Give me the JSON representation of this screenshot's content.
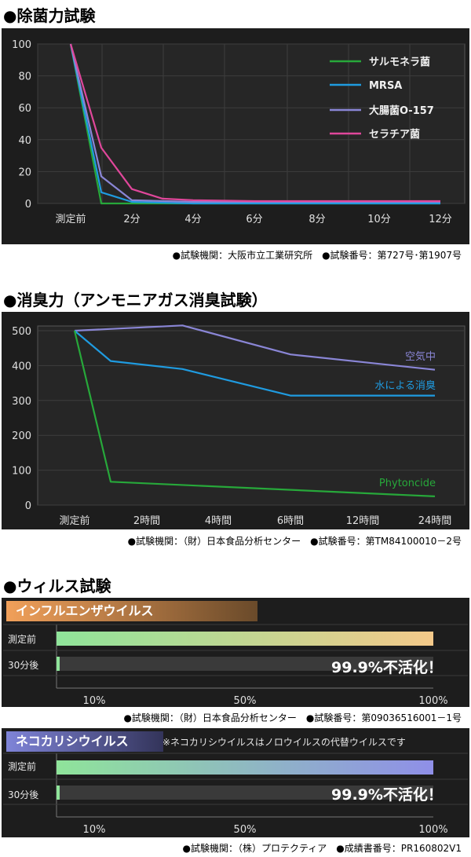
{
  "sections": [
    {
      "title": "●除菌力試験",
      "caption": "●試験機関：大阪市立工業研究所　●試験番号：第727号･第1907号"
    },
    {
      "title": "●消臭力（アンモニアガス消臭試験）",
      "caption": "●試験機関：（財）日本食品分析センター　●試験番号：第TM84100010－2号"
    },
    {
      "title": "●ウィルス試験"
    }
  ],
  "virus": [
    {
      "header": "インフルエンザウイルス",
      "note": "",
      "rows": [
        "測定前",
        "30分後"
      ],
      "result": "99.9%不活化！",
      "caption": "●試験機関：（財）日本食品分析センター　●試験番号：第09036516001－1号",
      "header_color": "#f1a05a",
      "before_fill": 1.0,
      "after_fill": 0.001
    },
    {
      "header": "ネコカリシウイルス",
      "note": "※ネコカリシウイルスはノロウイルスの代替ウイルスです",
      "rows": [
        "測定前",
        "30分後"
      ],
      "result": "99.9%不活化！",
      "caption": "●試験機関：（株）プロテクティア　●成績書番号：PR160802V1",
      "header_color": "#7f84d8",
      "before_fill": 1.0,
      "after_fill": 0.001
    }
  ],
  "chart_data": [
    {
      "type": "line",
      "title": "●除菌力試験",
      "x": [
        "測定前",
        "2分",
        "4分",
        "6分",
        "8分",
        "10分",
        "12分"
      ],
      "ylim": [
        0,
        100
      ],
      "yticks": [
        "100",
        "80",
        "60",
        "40",
        "20",
        "0"
      ],
      "grid": true,
      "legend": "top-right",
      "series": [
        {
          "name": "サルモネラ菌",
          "color": "#27a83a",
          "points": [
            [
              0,
              100
            ],
            [
              0.5,
              0
            ],
            [
              1,
              0
            ],
            [
              2,
              0
            ],
            [
              3,
              0
            ],
            [
              4,
              0
            ],
            [
              5,
              0
            ],
            [
              6,
              0
            ]
          ]
        },
        {
          "name": "MRSA",
          "color": "#1f9be0",
          "points": [
            [
              0,
              100
            ],
            [
              0.5,
              7
            ],
            [
              1,
              1
            ],
            [
              2,
              0
            ],
            [
              3,
              0
            ],
            [
              4,
              0
            ],
            [
              5,
              0
            ],
            [
              6,
              0
            ]
          ]
        },
        {
          "name": "大腸菌O-157",
          "color": "#8a86d6",
          "points": [
            [
              0,
              100
            ],
            [
              0.5,
              17
            ],
            [
              1,
              2
            ],
            [
              2,
              1
            ],
            [
              3,
              1
            ],
            [
              4,
              1
            ],
            [
              5,
              1
            ],
            [
              6,
              1
            ]
          ]
        },
        {
          "name": "セラチア菌",
          "color": "#e0479b",
          "points": [
            [
              0,
              100
            ],
            [
              0.5,
              35
            ],
            [
              1,
              9
            ],
            [
              1.5,
              3
            ],
            [
              2,
              2
            ],
            [
              3,
              1.5
            ],
            [
              4,
              1.5
            ],
            [
              5,
              1.5
            ],
            [
              6,
              1.5
            ]
          ]
        }
      ]
    },
    {
      "type": "line",
      "title": "●消臭力（アンモニアガス消臭試験）",
      "x": [
        "測定前",
        "2時間",
        "4時間",
        "6時間",
        "12時間",
        "24時間"
      ],
      "ylim": [
        0,
        500
      ],
      "yticks": [
        "500",
        "400",
        "300",
        "200",
        "100",
        "0"
      ],
      "grid": true,
      "series": [
        {
          "name": "空気中",
          "color": "#8a86d6",
          "points": [
            [
              0,
              500
            ],
            [
              1.5,
              515
            ],
            [
              3,
              432
            ],
            [
              5,
              388
            ]
          ]
        },
        {
          "name": "水による消臭",
          "color": "#1f9be0",
          "points": [
            [
              0,
              500
            ],
            [
              0.5,
              413
            ],
            [
              1.5,
              390
            ],
            [
              3,
              314
            ],
            [
              5,
              314
            ]
          ]
        },
        {
          "name": "Phytoncide",
          "color": "#27a83a",
          "points": [
            [
              0,
              500
            ],
            [
              0.5,
              67
            ],
            [
              5,
              25
            ]
          ]
        }
      ]
    },
    {
      "type": "bar",
      "title": "インフルエンザウイルス",
      "categories": [
        "測定前",
        "30分後"
      ],
      "values": [
        100,
        0.1
      ],
      "xticks": [
        "10%",
        "50%",
        "100%"
      ]
    },
    {
      "type": "bar",
      "title": "ネコカリシウイルス",
      "categories": [
        "測定前",
        "30分後"
      ],
      "values": [
        100,
        0.1
      ],
      "xticks": [
        "10%",
        "50%",
        "100%"
      ]
    }
  ]
}
